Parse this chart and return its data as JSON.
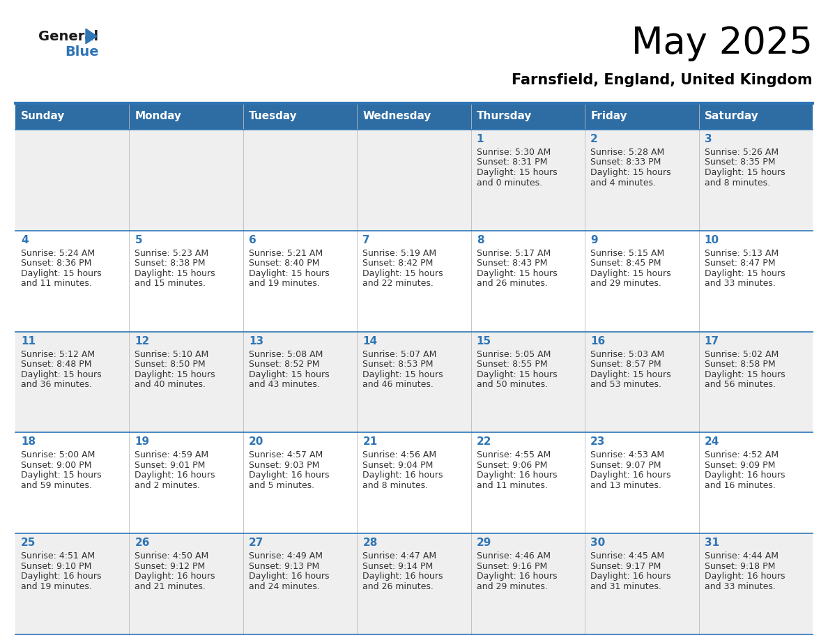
{
  "title": "May 2025",
  "subtitle": "Farnsfield, England, United Kingdom",
  "days_of_week": [
    "Sunday",
    "Monday",
    "Tuesday",
    "Wednesday",
    "Thursday",
    "Friday",
    "Saturday"
  ],
  "header_bg": "#2E6DA4",
  "header_text_color": "#FFFFFF",
  "cell_bg_light": "#EFEFEF",
  "cell_bg_white": "#FFFFFF",
  "separator_color": "#2E75B6",
  "text_color": "#333333",
  "day_num_color": "#2E75B6",
  "logo_black": "#1a1a1a",
  "logo_blue": "#2E75B6",
  "calendar_data": [
    [
      {
        "day": null,
        "sunrise": null,
        "sunset": null,
        "daylight": null
      },
      {
        "day": null,
        "sunrise": null,
        "sunset": null,
        "daylight": null
      },
      {
        "day": null,
        "sunrise": null,
        "sunset": null,
        "daylight": null
      },
      {
        "day": null,
        "sunrise": null,
        "sunset": null,
        "daylight": null
      },
      {
        "day": 1,
        "sunrise": "5:30 AM",
        "sunset": "8:31 PM",
        "daylight": "15 hours and 0 minutes."
      },
      {
        "day": 2,
        "sunrise": "5:28 AM",
        "sunset": "8:33 PM",
        "daylight": "15 hours and 4 minutes."
      },
      {
        "day": 3,
        "sunrise": "5:26 AM",
        "sunset": "8:35 PM",
        "daylight": "15 hours and 8 minutes."
      }
    ],
    [
      {
        "day": 4,
        "sunrise": "5:24 AM",
        "sunset": "8:36 PM",
        "daylight": "15 hours and 11 minutes."
      },
      {
        "day": 5,
        "sunrise": "5:23 AM",
        "sunset": "8:38 PM",
        "daylight": "15 hours and 15 minutes."
      },
      {
        "day": 6,
        "sunrise": "5:21 AM",
        "sunset": "8:40 PM",
        "daylight": "15 hours and 19 minutes."
      },
      {
        "day": 7,
        "sunrise": "5:19 AM",
        "sunset": "8:42 PM",
        "daylight": "15 hours and 22 minutes."
      },
      {
        "day": 8,
        "sunrise": "5:17 AM",
        "sunset": "8:43 PM",
        "daylight": "15 hours and 26 minutes."
      },
      {
        "day": 9,
        "sunrise": "5:15 AM",
        "sunset": "8:45 PM",
        "daylight": "15 hours and 29 minutes."
      },
      {
        "day": 10,
        "sunrise": "5:13 AM",
        "sunset": "8:47 PM",
        "daylight": "15 hours and 33 minutes."
      }
    ],
    [
      {
        "day": 11,
        "sunrise": "5:12 AM",
        "sunset": "8:48 PM",
        "daylight": "15 hours and 36 minutes."
      },
      {
        "day": 12,
        "sunrise": "5:10 AM",
        "sunset": "8:50 PM",
        "daylight": "15 hours and 40 minutes."
      },
      {
        "day": 13,
        "sunrise": "5:08 AM",
        "sunset": "8:52 PM",
        "daylight": "15 hours and 43 minutes."
      },
      {
        "day": 14,
        "sunrise": "5:07 AM",
        "sunset": "8:53 PM",
        "daylight": "15 hours and 46 minutes."
      },
      {
        "day": 15,
        "sunrise": "5:05 AM",
        "sunset": "8:55 PM",
        "daylight": "15 hours and 50 minutes."
      },
      {
        "day": 16,
        "sunrise": "5:03 AM",
        "sunset": "8:57 PM",
        "daylight": "15 hours and 53 minutes."
      },
      {
        "day": 17,
        "sunrise": "5:02 AM",
        "sunset": "8:58 PM",
        "daylight": "15 hours and 56 minutes."
      }
    ],
    [
      {
        "day": 18,
        "sunrise": "5:00 AM",
        "sunset": "9:00 PM",
        "daylight": "15 hours and 59 minutes."
      },
      {
        "day": 19,
        "sunrise": "4:59 AM",
        "sunset": "9:01 PM",
        "daylight": "16 hours and 2 minutes."
      },
      {
        "day": 20,
        "sunrise": "4:57 AM",
        "sunset": "9:03 PM",
        "daylight": "16 hours and 5 minutes."
      },
      {
        "day": 21,
        "sunrise": "4:56 AM",
        "sunset": "9:04 PM",
        "daylight": "16 hours and 8 minutes."
      },
      {
        "day": 22,
        "sunrise": "4:55 AM",
        "sunset": "9:06 PM",
        "daylight": "16 hours and 11 minutes."
      },
      {
        "day": 23,
        "sunrise": "4:53 AM",
        "sunset": "9:07 PM",
        "daylight": "16 hours and 13 minutes."
      },
      {
        "day": 24,
        "sunrise": "4:52 AM",
        "sunset": "9:09 PM",
        "daylight": "16 hours and 16 minutes."
      }
    ],
    [
      {
        "day": 25,
        "sunrise": "4:51 AM",
        "sunset": "9:10 PM",
        "daylight": "16 hours and 19 minutes."
      },
      {
        "day": 26,
        "sunrise": "4:50 AM",
        "sunset": "9:12 PM",
        "daylight": "16 hours and 21 minutes."
      },
      {
        "day": 27,
        "sunrise": "4:49 AM",
        "sunset": "9:13 PM",
        "daylight": "16 hours and 24 minutes."
      },
      {
        "day": 28,
        "sunrise": "4:47 AM",
        "sunset": "9:14 PM",
        "daylight": "16 hours and 26 minutes."
      },
      {
        "day": 29,
        "sunrise": "4:46 AM",
        "sunset": "9:16 PM",
        "daylight": "16 hours and 29 minutes."
      },
      {
        "day": 30,
        "sunrise": "4:45 AM",
        "sunset": "9:17 PM",
        "daylight": "16 hours and 31 minutes."
      },
      {
        "day": 31,
        "sunrise": "4:44 AM",
        "sunset": "9:18 PM",
        "daylight": "16 hours and 33 minutes."
      }
    ]
  ],
  "figsize": [
    11.88,
    9.18
  ],
  "dpi": 100
}
